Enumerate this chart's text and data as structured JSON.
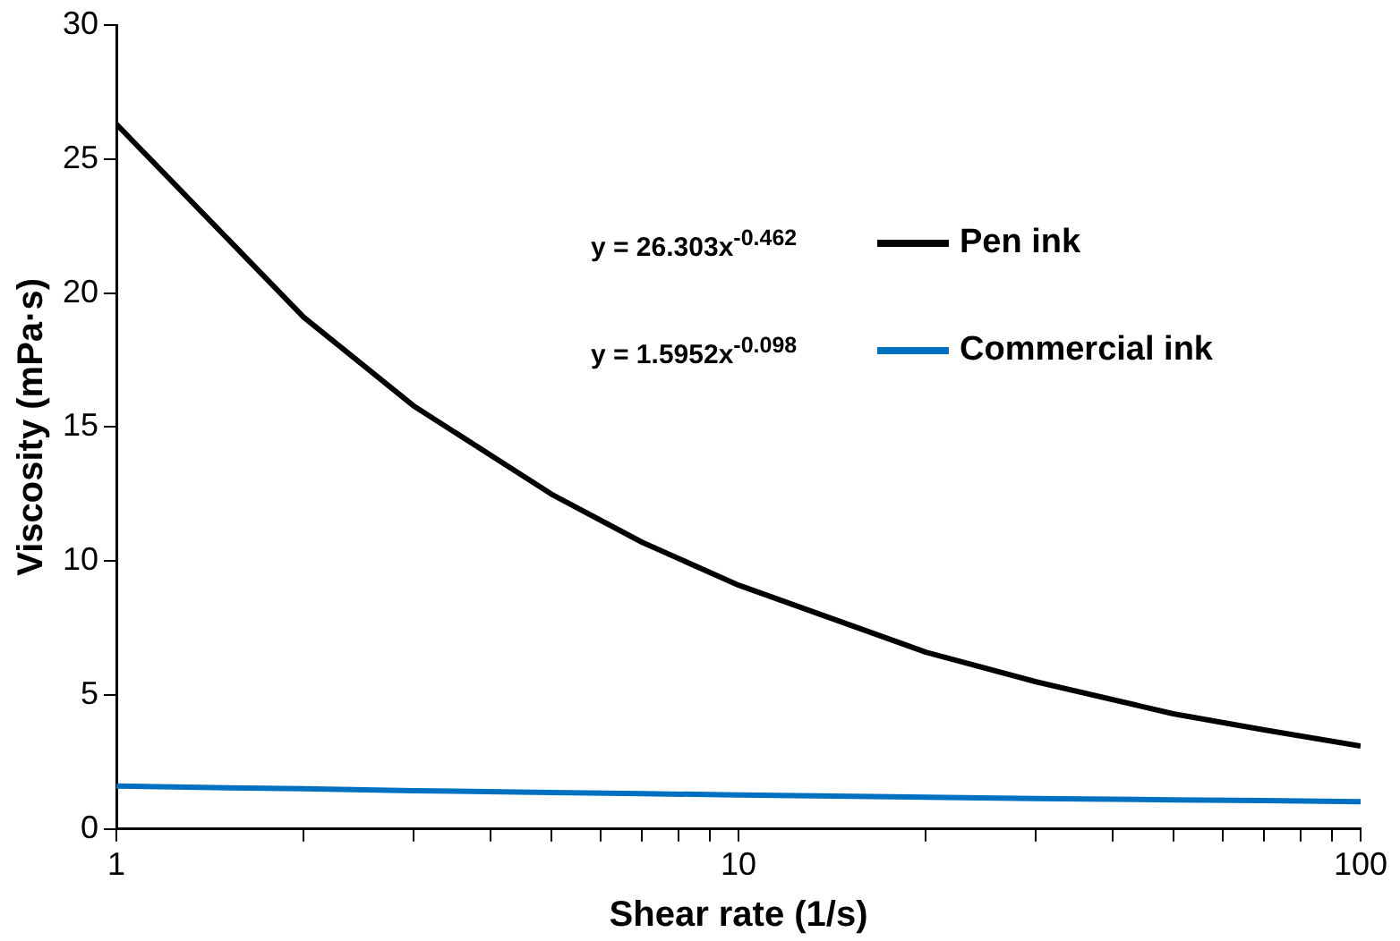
{
  "chart_data": {
    "type": "line",
    "xlabel": "Shear rate (1/s)",
    "ylabel": "Viscosity (mPa·s)",
    "log": "x",
    "xlim": [
      1,
      100
    ],
    "xticks": [
      1,
      {
        "value": 2,
        "label": null
      },
      {
        "value": 3,
        "label": null
      },
      {
        "value": 4,
        "label": null
      },
      {
        "value": 5,
        "label": null
      },
      {
        "value": 6,
        "label": null
      },
      {
        "value": 7,
        "label": null
      },
      {
        "value": 8,
        "label": null
      },
      {
        "value": 9,
        "label": null
      },
      10,
      {
        "value": 20,
        "label": null
      },
      {
        "value": 30,
        "label": null
      },
      {
        "value": 40,
        "label": null
      },
      {
        "value": 50,
        "label": null
      },
      {
        "value": 60,
        "label": null
      },
      {
        "value": 70,
        "label": null
      },
      {
        "value": 80,
        "label": null
      },
      {
        "value": 90,
        "label": null
      },
      100
    ],
    "ylim": [
      0,
      30
    ],
    "yticks": [
      0,
      5,
      10,
      15,
      20,
      25,
      30
    ],
    "grid": false,
    "legend": "top right",
    "marker": "none",
    "line_style": "solid",
    "x": [
      1,
      2,
      3,
      5,
      7,
      10,
      20,
      30,
      50,
      70,
      100
    ],
    "series": [
      {
        "name": "Pen ink",
        "color": "#000000",
        "values": [
          26.3,
          19.1,
          15.8,
          12.5,
          10.7,
          9.1,
          6.6,
          5.5,
          4.3,
          3.7,
          3.1
        ]
      },
      {
        "name": "Commercial ink",
        "color": "#0070c0",
        "values": [
          1.6,
          1.5,
          1.43,
          1.36,
          1.32,
          1.27,
          1.19,
          1.14,
          1.09,
          1.06,
          1.02
        ]
      }
    ],
    "annotations": [
      "y = 26.303x$^{-0.462}$",
      "y = 1.5952x$^{-0.098}$"
    ]
  }
}
